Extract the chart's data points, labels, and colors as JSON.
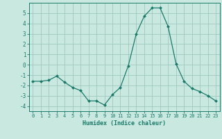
{
  "x": [
    0,
    1,
    2,
    3,
    4,
    5,
    6,
    7,
    8,
    9,
    10,
    11,
    12,
    13,
    14,
    15,
    16,
    17,
    18,
    19,
    20,
    21,
    22,
    23
  ],
  "y": [
    -1.6,
    -1.6,
    -1.5,
    -1.1,
    -1.7,
    -2.2,
    -2.5,
    -3.5,
    -3.5,
    -3.9,
    -2.9,
    -2.2,
    -0.1,
    3.0,
    4.7,
    5.5,
    5.5,
    3.7,
    0.1,
    -1.6,
    -2.3,
    -2.6,
    -3.0,
    -3.5
  ],
  "line_color": "#1a7a6a",
  "marker": "D",
  "marker_size": 2.0,
  "bg_color": "#c8e8e0",
  "grid_color": "#a0c8be",
  "xlabel": "Humidex (Indice chaleur)",
  "xlim": [
    -0.5,
    23.5
  ],
  "ylim": [
    -4.5,
    6.0
  ],
  "yticks": [
    -4,
    -3,
    -2,
    -1,
    0,
    1,
    2,
    3,
    4,
    5
  ],
  "xticks": [
    0,
    1,
    2,
    3,
    4,
    5,
    6,
    7,
    8,
    9,
    10,
    11,
    12,
    13,
    14,
    15,
    16,
    17,
    18,
    19,
    20,
    21,
    22,
    23
  ],
  "tick_color": "#1a7a6a",
  "label_color": "#1a7a6a",
  "axes_color": "#1a7a6a",
  "tick_fontsize": 5.0,
  "xlabel_fontsize": 6.0
}
